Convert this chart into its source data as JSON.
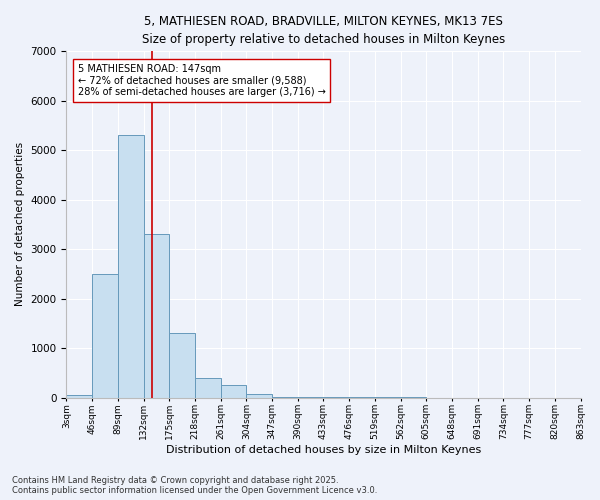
{
  "title_line1": "5, MATHIESEN ROAD, BRADVILLE, MILTON KEYNES, MK13 7ES",
  "title_line2": "Size of property relative to detached houses in Milton Keynes",
  "xlabel": "Distribution of detached houses by size in Milton Keynes",
  "ylabel": "Number of detached properties",
  "bar_edges": [
    3,
    46,
    89,
    132,
    175,
    218,
    261,
    304,
    347,
    390,
    433,
    476,
    519,
    562,
    605,
    648,
    691,
    734,
    777,
    820,
    863
  ],
  "bar_heights": [
    55,
    2500,
    5300,
    3300,
    1300,
    400,
    250,
    70,
    10,
    5,
    3,
    2,
    1,
    1,
    0,
    0,
    0,
    0,
    0,
    0
  ],
  "bar_color": "#c8dff0",
  "bar_edge_color": "#6699bb",
  "background_color": "#eef2fa",
  "grid_color": "#ffffff",
  "vline_x": 147,
  "vline_color": "#cc0000",
  "annotation_text": "5 MATHIESEN ROAD: 147sqm\n← 72% of detached houses are smaller (9,588)\n28% of semi-detached houses are larger (3,716) →",
  "annotation_box_edge": "#cc0000",
  "ylim": [
    0,
    7000
  ],
  "yticks": [
    0,
    1000,
    2000,
    3000,
    4000,
    5000,
    6000,
    7000
  ],
  "footer_line1": "Contains HM Land Registry data © Crown copyright and database right 2025.",
  "footer_line2": "Contains public sector information licensed under the Open Government Licence v3.0."
}
